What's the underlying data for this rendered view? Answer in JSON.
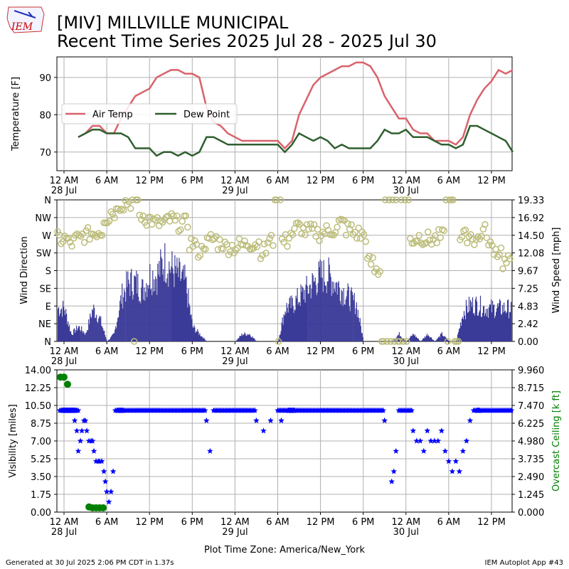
{
  "header": {
    "logo_text": "IEM",
    "title_line1": "[MIV] MILLVILLE MUNICIPAL",
    "title_line2": "Recent Time Series 2025 Jul 28 - 2025 Jul 30"
  },
  "footer": {
    "generated": "Generated at 30 Jul 2025 2:06 PM CDT in 1.37s",
    "app": "IEM Autoplot App #43",
    "timezone_label": "Plot Time Zone: America/New_York"
  },
  "colors": {
    "air_temp": "#d9626b",
    "dew_point": "#2f5f2f",
    "wind_speed": "#3a3a98",
    "wind_dir": "#bcbc7a",
    "visibility": "#0000ff",
    "ceiling": "#008000",
    "grid": "#b0b0b0"
  },
  "chart_data": [
    {
      "type": "line",
      "ylabel": "Temperature [F]",
      "ylim": [
        65,
        95.5
      ],
      "yticks": [
        70,
        80,
        90
      ],
      "xticks": [
        "12 AM",
        "6 AM",
        "12 PM",
        "6 PM",
        "12 AM",
        "6 AM",
        "12 PM",
        "6 PM",
        "12 AM",
        "6 AM",
        "12 PM"
      ],
      "xtick_hours": [
        0,
        6,
        12,
        18,
        24,
        30,
        36,
        42,
        48,
        54,
        60
      ],
      "day_labels": [
        {
          "hour": 0,
          "label": "28 Jul"
        },
        {
          "hour": 24,
          "label": "29 Jul"
        },
        {
          "hour": 48,
          "label": "30 Jul"
        }
      ],
      "xlim_hours": [
        -1,
        62.9
      ],
      "grid": true,
      "legend_position": "center-left",
      "series": [
        {
          "name": "Air Temp",
          "x": [
            2,
            3,
            4,
            5,
            6,
            7,
            8,
            9,
            10,
            11,
            12,
            13,
            14,
            15,
            16,
            17,
            18,
            19,
            20,
            21,
            22,
            23,
            24,
            25,
            26,
            27,
            28,
            29,
            30,
            31,
            32,
            33,
            34,
            35,
            36,
            37,
            38,
            39,
            40,
            41,
            42,
            43,
            44,
            45,
            46,
            47,
            48,
            49,
            50,
            51,
            52,
            53,
            54,
            55,
            56,
            57,
            58,
            59,
            60,
            61,
            62,
            63
          ],
          "values": [
            74,
            75,
            77,
            77,
            75,
            75,
            79,
            82,
            85,
            86,
            87,
            90,
            91,
            92,
            92,
            91,
            91,
            90,
            82,
            78,
            77,
            75,
            74,
            73,
            73,
            73,
            73,
            73,
            73,
            71,
            73,
            80,
            84,
            88,
            90,
            91,
            92,
            93,
            93,
            94,
            94,
            93,
            90,
            85,
            82,
            79,
            79,
            76,
            75,
            75,
            73,
            73,
            73,
            72,
            74,
            80,
            84,
            87,
            89,
            92,
            91,
            92
          ],
          "color": "#d9626b"
        },
        {
          "name": "Dew Point",
          "x": [
            2,
            3,
            4,
            5,
            6,
            7,
            8,
            9,
            10,
            11,
            12,
            13,
            14,
            15,
            16,
            17,
            18,
            19,
            20,
            21,
            22,
            23,
            24,
            25,
            26,
            27,
            28,
            29,
            30,
            31,
            32,
            33,
            34,
            35,
            36,
            37,
            38,
            39,
            40,
            41,
            42,
            43,
            44,
            45,
            46,
            47,
            48,
            49,
            50,
            51,
            52,
            53,
            54,
            55,
            56,
            57,
            58,
            59,
            60,
            61,
            62,
            63
          ],
          "values": [
            74,
            75,
            76,
            76,
            75,
            75,
            75,
            74,
            71,
            71,
            71,
            69,
            70,
            70,
            69,
            70,
            69,
            70,
            74,
            74,
            73,
            72,
            72,
            72,
            72,
            72,
            72,
            72,
            72,
            70,
            72,
            75,
            74,
            73,
            74,
            73,
            71,
            72,
            71,
            71,
            71,
            71,
            73,
            76,
            75,
            75,
            76,
            74,
            74,
            74,
            73,
            72,
            72,
            71,
            72,
            77,
            77,
            76,
            75,
            74,
            73,
            70
          ],
          "color": "#2f5f2f"
        }
      ]
    },
    {
      "type": "bar",
      "ylabel": "Wind Direction",
      "y2label": "Wind Speed [mph]",
      "yticks_dir": [
        "N",
        "NE",
        "E",
        "SE",
        "S",
        "SW",
        "W",
        "NW",
        "N"
      ],
      "yticks_speed": [
        "0.00",
        "2.42",
        "4.83",
        "7.25",
        "9.67",
        "12.08",
        "14.50",
        "16.92",
        "19.33"
      ],
      "speed_ylim": [
        0,
        19.33
      ],
      "xticks": [
        "12 AM",
        "6 AM",
        "12 PM",
        "6 PM",
        "12 AM",
        "6 AM",
        "12 PM",
        "6 PM",
        "12 AM",
        "6 AM",
        "12 PM"
      ],
      "day_labels": [
        {
          "hour": 0,
          "label": "28 Jul"
        },
        {
          "hour": 24,
          "label": "29 Jul"
        },
        {
          "hour": 48,
          "label": "30 Jul"
        }
      ],
      "grid": true,
      "wind_speed_profile": {
        "hours": [
          0,
          1,
          2,
          3,
          4,
          5,
          6,
          7,
          8,
          9,
          10,
          11,
          12,
          13,
          14,
          15,
          16,
          17,
          18,
          19,
          20,
          21,
          22,
          23,
          24,
          25,
          26,
          27,
          28,
          29,
          30,
          31,
          32,
          33,
          34,
          35,
          36,
          37,
          38,
          39,
          40,
          41,
          42,
          43,
          44,
          45,
          46,
          47,
          48,
          49,
          50,
          51,
          52,
          53,
          54,
          55,
          56,
          57,
          58,
          59,
          60,
          61,
          62,
          63
        ],
        "mph": [
          4.5,
          1,
          2,
          1,
          4.5,
          3,
          0,
          1,
          6,
          8,
          8,
          7,
          9,
          9,
          11,
          10,
          9,
          8,
          2,
          1,
          0,
          0,
          0,
          0,
          0,
          1,
          1,
          0,
          0,
          0,
          0,
          4.5,
          5,
          6,
          7,
          8,
          9,
          9,
          8,
          7,
          6,
          5,
          0,
          0,
          0,
          0,
          0,
          1,
          0,
          1,
          0,
          1,
          0,
          1,
          0,
          0,
          4,
          5,
          5,
          4.5,
          4.5,
          4.5,
          4.5,
          4.5
        ]
      },
      "wind_dir_profile": {
        "hours": [
          0,
          1,
          2,
          3,
          4,
          5,
          6,
          7,
          8,
          9,
          10,
          11,
          12,
          13,
          14,
          15,
          16,
          17,
          18,
          19,
          20,
          21,
          22,
          23,
          24,
          25,
          26,
          27,
          28,
          29,
          30,
          31,
          32,
          33,
          34,
          35,
          36,
          37,
          38,
          39,
          40,
          41,
          42,
          43,
          44,
          45,
          46,
          47,
          48,
          49,
          50,
          51,
          52,
          53,
          54,
          55,
          56,
          57,
          58,
          59,
          60,
          61,
          62,
          63
        ],
        "deg": [
          260,
          250,
          260,
          270,
          275,
          280,
          315,
          330,
          350,
          355,
          0,
          320,
          310,
          300,
          300,
          310,
          300,
          300,
          250,
          230,
          250,
          260,
          250,
          240,
          240,
          245,
          250,
          250,
          230,
          255,
          0,
          255,
          275,
          290,
          280,
          280,
          275,
          280,
          285,
          300,
          285,
          275,
          270,
          200,
          180,
          0,
          0,
          0,
          0,
          260,
          265,
          260,
          260,
          265,
          0,
          0,
          265,
          270,
          260,
          280,
          240,
          230,
          200,
          195
        ]
      }
    },
    {
      "type": "scatter",
      "ylabel": "Visibility [miles]",
      "y2label": "Overcast Ceiling [k ft]",
      "ylim": [
        0,
        14
      ],
      "yticks": [
        "0.00",
        "1.75",
        "3.50",
        "5.25",
        "7.00",
        "8.75",
        "10.50",
        "12.25",
        "14.00"
      ],
      "y2ticks": [
        "0.000",
        "1.245",
        "2.490",
        "3.735",
        "4.980",
        "6.225",
        "7.470",
        "8.715",
        "9.960"
      ],
      "xticks": [
        "12 AM",
        "6 AM",
        "12 PM",
        "6 PM",
        "12 AM",
        "6 AM",
        "12 PM",
        "6 PM",
        "12 AM",
        "6 AM",
        "12 PM"
      ],
      "day_labels": [
        {
          "hour": 0,
          "label": "28 Jul"
        },
        {
          "hour": 24,
          "label": "29 Jul"
        },
        {
          "hour": 48,
          "label": "30 Jul"
        }
      ],
      "xlabel": "Plot Time Zone: America/New_York",
      "grid": true,
      "visibility_points": {
        "hours": [
          -0.6,
          -0.3,
          0,
          0.3,
          0.6,
          0.9,
          1.2,
          1.5,
          1.8,
          2.0,
          2.3,
          2.5,
          2.8,
          3.0,
          3.2,
          3.5,
          3.8,
          4.0,
          4.2,
          4.5,
          4.8,
          5.0,
          5.3,
          5.6,
          5.8,
          6.0,
          6.3,
          6.6,
          6.9,
          7.2,
          7.5,
          8,
          9,
          10,
          11,
          12,
          13,
          14,
          15,
          16,
          17,
          18,
          19,
          20,
          20.5,
          21,
          22,
          23,
          24,
          25,
          26,
          27,
          28,
          29,
          30,
          30.5,
          31,
          31.5,
          32,
          33,
          34,
          35,
          36,
          37,
          38,
          39,
          40,
          41,
          42,
          43,
          44,
          45,
          46,
          46.3,
          46.6,
          47,
          48,
          49,
          49.5,
          50,
          50.5,
          51,
          51.5,
          52,
          52.5,
          53,
          53.5,
          54,
          54.5,
          55,
          55.5,
          56,
          56.5,
          57,
          57.5,
          58,
          59,
          60,
          61,
          62,
          63
        ],
        "miles": [
          10,
          10,
          10,
          10,
          10,
          10,
          10,
          9,
          8,
          6,
          7,
          8,
          9,
          9,
          8,
          7,
          7,
          7,
          6,
          5,
          5,
          5,
          5,
          4,
          3,
          2,
          1,
          2,
          4,
          10,
          10,
          10,
          10,
          10,
          10,
          10,
          10,
          10,
          10,
          10,
          10,
          10,
          10,
          9,
          6,
          10,
          10,
          10,
          10,
          10,
          10,
          9,
          8,
          9,
          10,
          9,
          10,
          10,
          10,
          10,
          10,
          10,
          10,
          10,
          10,
          10,
          10,
          10,
          10,
          10,
          10,
          9,
          3,
          4,
          6,
          10,
          10,
          8,
          7,
          7,
          6,
          8,
          7,
          7,
          7,
          8,
          6,
          5,
          4,
          5,
          4,
          6,
          7,
          9,
          10,
          10,
          10,
          10,
          10,
          10,
          10
        ]
      },
      "ceiling_points": {
        "hours": [
          -0.5,
          0,
          0.5,
          3.5,
          4,
          4.5,
          5,
          5.5
        ],
        "kft": [
          9.45,
          9.45,
          8.95,
          0.36,
          0.3,
          0.3,
          0.3,
          0.3
        ]
      }
    }
  ]
}
